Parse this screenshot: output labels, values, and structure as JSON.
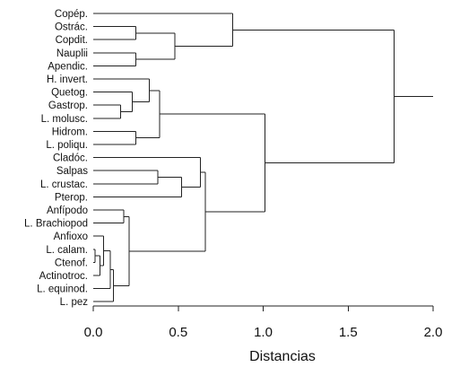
{
  "chart_data": {
    "type": "dendrogram",
    "orientation": "horizontal",
    "xlabel": "Distancias",
    "xlim": [
      0.0,
      2.0
    ],
    "xticks": [
      0.0,
      0.5,
      1.0,
      1.5,
      2.0
    ],
    "xtick_labels": [
      "0.0",
      "0.5",
      "1.0",
      "1.5",
      "2.0"
    ],
    "grid": false,
    "leaves": [
      "Copép.",
      "Ostrác.",
      "Copdit.",
      "Nauplii",
      "Apendic.",
      "H. invert.",
      "Quetog.",
      "Gastrop.",
      "L. molusc.",
      "Hidrom.",
      "L. poliqu.",
      "Cladóc.",
      "Salpas",
      "L. crustac.",
      "Pterop.",
      "Anfípodo",
      "L. Brachiopod",
      "Anfioxo",
      "L. calam.",
      "Ctenof.",
      "Actinotroc.",
      "L. equinod.",
      "L. pez"
    ],
    "merges": [
      {
        "id": "m1",
        "left": "leaf:1",
        "right": "leaf:2",
        "height": 0.25
      },
      {
        "id": "m2",
        "left": "leaf:3",
        "right": "leaf:4",
        "height": 0.25
      },
      {
        "id": "m3",
        "left": "m1",
        "right": "m2",
        "height": 0.48
      },
      {
        "id": "m4",
        "left": "leaf:0",
        "right": "m3",
        "height": 0.82
      },
      {
        "id": "m5",
        "left": "leaf:7",
        "right": "leaf:8",
        "height": 0.16
      },
      {
        "id": "m6",
        "left": "leaf:6",
        "right": "m5",
        "height": 0.23
      },
      {
        "id": "m7",
        "left": "leaf:5",
        "right": "m6",
        "height": 0.33
      },
      {
        "id": "m8",
        "left": "leaf:9",
        "right": "leaf:10",
        "height": 0.25
      },
      {
        "id": "m9",
        "left": "m7",
        "right": "m8",
        "height": 0.39
      },
      {
        "id": "m10",
        "left": "leaf:12",
        "right": "leaf:13",
        "height": 0.38
      },
      {
        "id": "m11",
        "left": "m10",
        "right": "leaf:14",
        "height": 0.52
      },
      {
        "id": "m12",
        "left": "leaf:11",
        "right": "m11",
        "height": 0.63
      },
      {
        "id": "m13",
        "left": "leaf:15",
        "right": "leaf:16",
        "height": 0.18
      },
      {
        "id": "m14",
        "left": "leaf:18",
        "right": "leaf:19",
        "height": 0.01
      },
      {
        "id": "m15",
        "left": "m14",
        "right": "leaf:20",
        "height": 0.04
      },
      {
        "id": "m16",
        "left": "leaf:17",
        "right": "m15",
        "height": 0.06
      },
      {
        "id": "m17",
        "left": "m16",
        "right": "leaf:21",
        "height": 0.1
      },
      {
        "id": "m18",
        "left": "m17",
        "right": "leaf:22",
        "height": 0.12
      },
      {
        "id": "m19",
        "left": "m13",
        "right": "m18",
        "height": 0.21
      },
      {
        "id": "m20",
        "left": "m12",
        "right": "m19",
        "height": 0.66
      },
      {
        "id": "m21",
        "left": "m9",
        "right": "m20",
        "height": 1.01
      },
      {
        "id": "m22",
        "left": "m4",
        "right": "m21",
        "height": 1.77
      }
    ],
    "root_height": 2.0
  }
}
